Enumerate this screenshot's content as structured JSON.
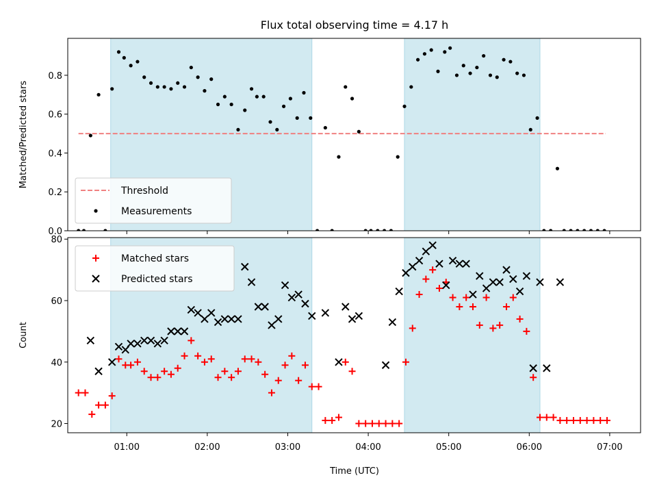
{
  "figure": {
    "title": "Flux total observing time = 4.17 h",
    "xlabel": "Time (UTC)",
    "x_ticks": [
      "01:00",
      "02:00",
      "03:00",
      "04:00",
      "05:00",
      "06:00",
      "07:00"
    ],
    "colors": {
      "shade": "#add8e6",
      "threshold": "#f08080",
      "measurement": "#000000",
      "matched": "#ff0000",
      "predicted": "#000000"
    }
  },
  "chart_data": [
    {
      "type": "scatter",
      "ylabel": "Matched/Predicted stars",
      "xlim": [
        "00:16",
        "07:23"
      ],
      "ylim": [
        0,
        0.99
      ],
      "y_ticks": [
        "0.0",
        "0.2",
        "0.4",
        "0.6",
        "0.8"
      ],
      "y_tick_values": [
        0,
        0.2,
        0.4,
        0.6,
        0.8
      ],
      "shaded_intervals": [
        [
          "00:48",
          "03:18"
        ],
        [
          "04:27",
          "06:08"
        ]
      ],
      "threshold": {
        "name": "Threshold",
        "value": 0.5,
        "x_range": [
          "00:24",
          "06:57"
        ]
      },
      "legend": {
        "placement": "lower left",
        "entries": [
          "Threshold",
          "Measurements"
        ]
      },
      "series": [
        {
          "name": "Measurements",
          "x": [
            "00:24",
            "00:28",
            "00:33",
            "00:39",
            "00:44",
            "00:49",
            "00:54",
            "00:58",
            "01:03",
            "01:08",
            "01:13",
            "01:18",
            "01:23",
            "01:28",
            "01:33",
            "01:38",
            "01:43",
            "01:48",
            "01:53",
            "01:58",
            "02:03",
            "02:08",
            "02:13",
            "02:18",
            "02:23",
            "02:28",
            "02:33",
            "02:37",
            "02:42",
            "02:47",
            "02:52",
            "02:57",
            "03:02",
            "03:07",
            "03:12",
            "03:17",
            "03:22",
            "03:28",
            "03:33",
            "03:38",
            "03:43",
            "03:48",
            "03:53",
            "03:58",
            "04:02",
            "04:07",
            "04:12",
            "04:17",
            "04:22",
            "04:27",
            "04:32",
            "04:37",
            "04:42",
            "04:47",
            "04:52",
            "04:57",
            "05:01",
            "05:06",
            "05:11",
            "05:16",
            "05:21",
            "05:26",
            "05:31",
            "05:36",
            "05:41",
            "05:46",
            "05:51",
            "05:56",
            "06:01",
            "06:06",
            "06:11",
            "06:16",
            "06:21",
            "06:26",
            "06:31",
            "06:36",
            "06:41",
            "06:46",
            "06:51",
            "06:56"
          ],
          "y": [
            0,
            0,
            0.49,
            0.7,
            0,
            0.73,
            0.92,
            0.89,
            0.85,
            0.87,
            0.79,
            0.76,
            0.74,
            0.74,
            0.73,
            0.76,
            0.74,
            0.84,
            0.79,
            0.72,
            0.78,
            0.65,
            0.69,
            0.65,
            0.52,
            0.62,
            0.73,
            0.69,
            0.69,
            0.56,
            0.52,
            0.64,
            0.68,
            0.58,
            0.71,
            0.58,
            0,
            0.53,
            0,
            0.38,
            0.74,
            0.68,
            0.51,
            0,
            0,
            0,
            0,
            0,
            0.38,
            0.64,
            0.74,
            0.88,
            0.91,
            0.93,
            0.82,
            0.92,
            0.94,
            0.8,
            0.85,
            0.81,
            0.84,
            0.9,
            0.8,
            0.79,
            0.88,
            0.87,
            0.81,
            0.8,
            0.52,
            0.58,
            0,
            0,
            0.32,
            0,
            0,
            0,
            0,
            0,
            0,
            0
          ]
        }
      ]
    },
    {
      "type": "scatter",
      "ylabel": "Count",
      "xlim": [
        "00:16",
        "07:23"
      ],
      "ylim": [
        17,
        80.5
      ],
      "y_ticks": [
        "20",
        "40",
        "60",
        "80"
      ],
      "y_tick_values": [
        20,
        40,
        60,
        80
      ],
      "shaded_intervals": [
        [
          "00:48",
          "03:18"
        ],
        [
          "04:27",
          "06:08"
        ]
      ],
      "legend": {
        "placement": "upper left",
        "entries": [
          "Matched stars",
          "Predicted stars"
        ]
      },
      "series": [
        {
          "name": "Matched stars",
          "x": [
            "00:24",
            "00:29",
            "00:34",
            "00:39",
            "00:44",
            "00:49",
            "00:54",
            "00:59",
            "01:03",
            "01:08",
            "01:13",
            "01:18",
            "01:23",
            "01:28",
            "01:33",
            "01:38",
            "01:43",
            "01:48",
            "01:53",
            "01:58",
            "02:03",
            "02:08",
            "02:13",
            "02:18",
            "02:23",
            "02:28",
            "02:33",
            "02:38",
            "02:43",
            "02:48",
            "02:53",
            "02:58",
            "03:03",
            "03:08",
            "03:13",
            "03:18",
            "03:23",
            "03:28",
            "03:33",
            "03:38",
            "03:43",
            "03:48",
            "03:53",
            "03:58",
            "04:03",
            "04:08",
            "04:13",
            "04:18",
            "04:23",
            "04:28",
            "04:33",
            "04:38",
            "04:43",
            "04:48",
            "04:53",
            "04:58",
            "05:03",
            "05:08",
            "05:13",
            "05:18",
            "05:23",
            "05:28",
            "05:33",
            "05:38",
            "05:43",
            "05:48",
            "05:53",
            "05:58",
            "06:03",
            "06:08",
            "06:13",
            "06:18",
            "06:23",
            "06:28",
            "06:33",
            "06:38",
            "06:43",
            "06:48",
            "06:53",
            "06:58"
          ],
          "y": [
            30,
            30,
            23,
            26,
            26,
            29,
            41,
            39,
            39,
            40,
            37,
            35,
            35,
            37,
            36,
            38,
            42,
            47,
            42,
            40,
            41,
            35,
            37,
            35,
            37,
            41,
            41,
            40,
            36,
            30,
            34,
            39,
            42,
            34,
            39,
            32,
            32,
            21,
            21,
            22,
            40,
            37,
            20,
            20,
            20,
            20,
            20,
            20,
            20,
            40,
            51,
            62,
            67,
            70,
            64,
            66,
            61,
            58,
            61,
            58,
            52,
            61,
            51,
            52,
            58,
            61,
            54,
            50,
            35,
            22,
            22,
            22,
            21,
            21,
            21,
            21,
            21,
            21,
            21,
            21
          ]
        },
        {
          "name": "Predicted stars",
          "x": [
            "00:33",
            "00:39",
            "00:49",
            "00:54",
            "00:59",
            "01:03",
            "01:08",
            "01:13",
            "01:18",
            "01:23",
            "01:28",
            "01:33",
            "01:38",
            "01:43",
            "01:48",
            "01:53",
            "01:58",
            "02:03",
            "02:08",
            "02:13",
            "02:18",
            "02:23",
            "02:28",
            "02:33",
            "02:38",
            "02:43",
            "02:48",
            "02:53",
            "02:58",
            "03:03",
            "03:08",
            "03:13",
            "03:18",
            "03:28",
            "03:38",
            "03:43",
            "03:48",
            "03:53",
            "04:13",
            "04:18",
            "04:23",
            "04:28",
            "04:33",
            "04:38",
            "04:43",
            "04:48",
            "04:53",
            "04:58",
            "05:03",
            "05:08",
            "05:13",
            "05:18",
            "05:23",
            "05:28",
            "05:33",
            "05:38",
            "05:43",
            "05:48",
            "05:53",
            "05:58",
            "06:03",
            "06:08",
            "06:13",
            "06:23"
          ],
          "y": [
            47,
            37,
            40,
            45,
            44,
            46,
            46,
            47,
            47,
            46,
            47,
            50,
            50,
            50,
            57,
            56,
            54,
            56,
            53,
            54,
            54,
            54,
            71,
            66,
            58,
            58,
            52,
            54,
            65,
            61,
            62,
            59,
            55,
            56,
            40,
            58,
            54,
            55,
            39,
            53,
            63,
            69,
            71,
            73,
            76,
            78,
            72,
            65,
            73,
            72,
            72,
            62,
            68,
            64,
            66,
            66,
            70,
            67,
            63,
            68,
            38,
            66,
            38,
            66
          ]
        }
      ]
    }
  ]
}
